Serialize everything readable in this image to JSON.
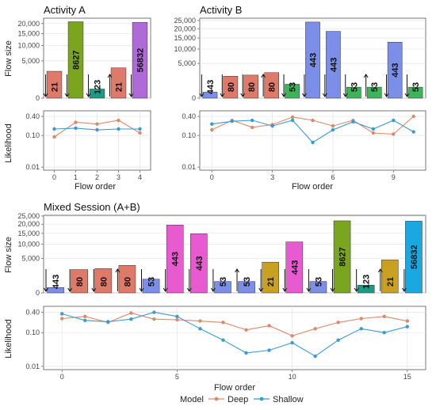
{
  "legend": {
    "title": "Model",
    "items": [
      {
        "name": "Deep",
        "color": "#d98a6a"
      },
      {
        "name": "Shallow",
        "color": "#3a9bd1"
      }
    ]
  },
  "chart_data": [
    {
      "id": "A",
      "type": "bar",
      "title": "Activity A",
      "ylabel": "Flow size",
      "yscale": "sqrt",
      "yticks": [
        "0",
        "5,000",
        "10,000",
        "15,000",
        "20,000"
      ],
      "ytick_values": [
        0,
        5000,
        10000,
        15000,
        20000
      ],
      "ylim": [
        0,
        23000
      ],
      "bars": [
        {
          "label": "21",
          "value": 2600,
          "color": "#de7a6a",
          "dir": "down"
        },
        {
          "label": "8627",
          "value": 21000,
          "color": "#7aa520",
          "dir": "down"
        },
        {
          "label": "123",
          "value": 300,
          "color": "#1c9a84",
          "dir": "down"
        },
        {
          "label": "21",
          "value": 3300,
          "color": "#de7a6a",
          "dir": "up"
        },
        {
          "label": "56832",
          "value": 20700,
          "color": "#b06ad8",
          "dir": "down"
        }
      ],
      "line": {
        "ylabel": "Likelihood",
        "xlabel": "Flow order",
        "xticks": [
          0,
          1,
          2,
          3,
          4
        ],
        "xlim": [
          -0.5,
          4.5
        ],
        "yticks": [
          "0.01",
          "0.10",
          "0.40"
        ],
        "ytick_values": [
          0.01,
          0.1,
          0.4
        ],
        "ylim": [
          0.008,
          0.6
        ],
        "series": [
          {
            "name": "Deep",
            "x": [
              0,
              1,
              2,
              3,
              4
            ],
            "y": [
              0.09,
              0.26,
              0.23,
              0.3,
              0.12
            ]
          },
          {
            "name": "Shallow",
            "x": [
              0,
              1,
              2,
              3,
              4
            ],
            "y": [
              0.16,
              0.17,
              0.15,
              0.16,
              0.16
            ]
          }
        ]
      }
    },
    {
      "id": "B",
      "type": "bar",
      "title": "Activity B",
      "yscale": "sqrt",
      "yticks": [
        "0",
        "5,000",
        "10,000",
        "15,000",
        "20,000",
        "25,000"
      ],
      "ytick_values": [
        0,
        5000,
        10000,
        15000,
        20000,
        25000
      ],
      "ylim": [
        0,
        26500
      ],
      "bars": [
        {
          "label": "443",
          "value": 150,
          "color": "#7b8ee8",
          "dir": "down"
        },
        {
          "label": "80",
          "value": 2000,
          "color": "#de7a6a",
          "dir": "down"
        },
        {
          "label": "80",
          "value": 2200,
          "color": "#de7a6a",
          "dir": "down"
        },
        {
          "label": "80",
          "value": 2700,
          "color": "#de7a6a",
          "dir": "up"
        },
        {
          "label": "53",
          "value": 800,
          "color": "#3db35a",
          "dir": "down"
        },
        {
          "label": "443",
          "value": 24000,
          "color": "#7b8ee8",
          "dir": "down"
        },
        {
          "label": "443",
          "value": 18500,
          "color": "#7b8ee8",
          "dir": "down"
        },
        {
          "label": "53",
          "value": 500,
          "color": "#3db35a",
          "dir": "down"
        },
        {
          "label": "53",
          "value": 500,
          "color": "#3db35a",
          "dir": "up"
        },
        {
          "label": "443",
          "value": 13000,
          "color": "#7b8ee8",
          "dir": "down"
        },
        {
          "label": "53",
          "value": 500,
          "color": "#3db35a",
          "dir": "down"
        }
      ],
      "line": {
        "xlabel": "Flow order",
        "xticks": [
          0,
          3,
          6,
          9
        ],
        "xlim": [
          -0.6,
          10.6
        ],
        "yticks": [
          "0.01",
          "0.10",
          "0.40"
        ],
        "ytick_values": [
          0.01,
          0.1,
          0.4
        ],
        "ylim": [
          0.008,
          0.6
        ],
        "series": [
          {
            "name": "Deep",
            "x": [
              0,
              1,
              2,
              3,
              4,
              5,
              6,
              7,
              8,
              9,
              10
            ],
            "y": [
              0.15,
              0.3,
              0.18,
              0.22,
              0.38,
              0.3,
              0.2,
              0.3,
              0.12,
              0.11,
              0.4
            ]
          },
          {
            "name": "Shallow",
            "x": [
              0,
              1,
              2,
              3,
              4,
              5,
              6,
              7,
              8,
              9,
              10
            ],
            "y": [
              0.23,
              0.28,
              0.3,
              0.2,
              0.3,
              0.06,
              0.15,
              0.27,
              0.16,
              0.3,
              0.13
            ]
          }
        ]
      }
    },
    {
      "id": "AB",
      "type": "bar",
      "title": "Mixed Session (A+B)",
      "ylabel": "Flow size",
      "yscale": "sqrt",
      "yticks": [
        "0",
        "5,000",
        "10,000",
        "15,000",
        "20,000",
        "25,000"
      ],
      "ytick_values": [
        0,
        5000,
        10000,
        15000,
        20000,
        25000
      ],
      "ylim": [
        0,
        25500
      ],
      "bars": [
        {
          "label": "443",
          "value": 120,
          "color": "#7b8ee8",
          "dir": "down"
        },
        {
          "label": "80",
          "value": 2300,
          "color": "#de7a6a",
          "dir": "down"
        },
        {
          "label": "80",
          "value": 2500,
          "color": "#de7a6a",
          "dir": "down"
        },
        {
          "label": "80",
          "value": 3200,
          "color": "#de7a6a",
          "dir": "up"
        },
        {
          "label": "53",
          "value": 800,
          "color": "#7b8ee8",
          "dir": "down"
        },
        {
          "label": "443",
          "value": 19500,
          "color": "#e85bd0",
          "dir": "down"
        },
        {
          "label": "443",
          "value": 14800,
          "color": "#e85bd0",
          "dir": "down"
        },
        {
          "label": "53",
          "value": 550,
          "color": "#7b8ee8",
          "dir": "down"
        },
        {
          "label": "53",
          "value": 550,
          "color": "#7b8ee8",
          "dir": "up"
        },
        {
          "label": "21",
          "value": 4000,
          "color": "#c9a020",
          "dir": "down"
        },
        {
          "label": "443",
          "value": 11000,
          "color": "#e85bd0",
          "dir": "down"
        },
        {
          "label": "53",
          "value": 550,
          "color": "#7b8ee8",
          "dir": "down"
        },
        {
          "label": "8627",
          "value": 22000,
          "color": "#7aa520",
          "dir": "down"
        },
        {
          "label": "123",
          "value": 250,
          "color": "#1c9a84",
          "dir": "down"
        },
        {
          "label": "21",
          "value": 4600,
          "color": "#c9a020",
          "dir": "up"
        },
        {
          "label": "56832",
          "value": 21800,
          "color": "#1aa8e0",
          "dir": "down"
        }
      ],
      "line": {
        "ylabel": "Likelihood",
        "xlabel": "Flow order",
        "xticks": [
          0,
          5,
          10,
          15
        ],
        "xlim": [
          -0.8,
          15.8
        ],
        "yticks": [
          "0.01",
          "0.10",
          "0.40"
        ],
        "ytick_values": [
          0.01,
          0.1,
          0.4
        ],
        "ylim": [
          0.008,
          0.6
        ],
        "series": [
          {
            "name": "Deep",
            "x": [
              0,
              1,
              2,
              3,
              4,
              5,
              6,
              7,
              8,
              9,
              10,
              11,
              12,
              13,
              14,
              15
            ],
            "y": [
              0.26,
              0.3,
              0.2,
              0.38,
              0.25,
              0.24,
              0.22,
              0.2,
              0.12,
              0.16,
              0.08,
              0.13,
              0.2,
              0.26,
              0.3,
              0.22
            ]
          },
          {
            "name": "Shallow",
            "x": [
              0,
              1,
              2,
              3,
              4,
              5,
              6,
              7,
              8,
              9,
              10,
              11,
              12,
              13,
              14,
              15
            ],
            "y": [
              0.36,
              0.23,
              0.21,
              0.25,
              0.4,
              0.3,
              0.13,
              0.06,
              0.025,
              0.03,
              0.05,
              0.02,
              0.06,
              0.13,
              0.1,
              0.15
            ]
          }
        ]
      }
    }
  ]
}
